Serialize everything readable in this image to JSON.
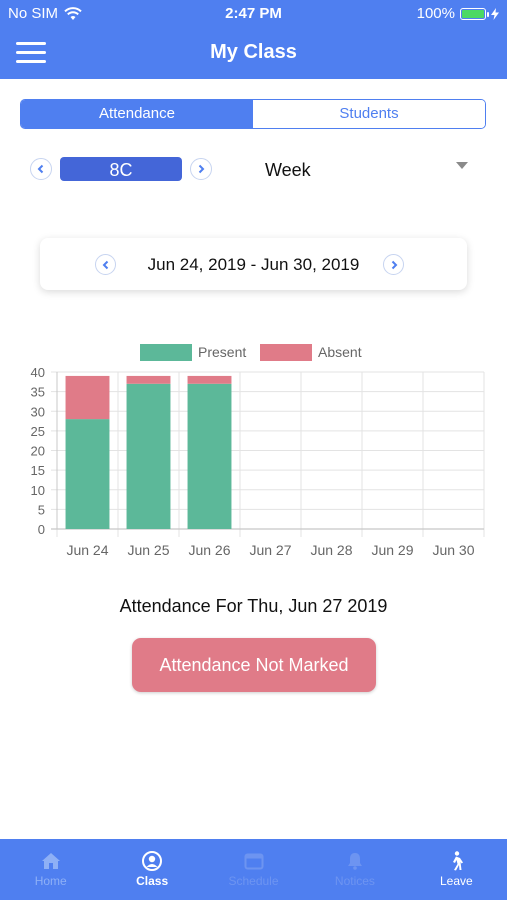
{
  "status_bar": {
    "carrier": "No SIM",
    "time": "2:47 PM",
    "battery": "100%"
  },
  "header": {
    "title": "My Class"
  },
  "segments": {
    "attendance": "Attendance",
    "students": "Students"
  },
  "selector": {
    "class_name": "8C",
    "period": "Week"
  },
  "date_range": {
    "label": "Jun 24, 2019 - Jun 30, 2019"
  },
  "chart_data": {
    "type": "bar",
    "stacked": true,
    "categories": [
      "Jun 24",
      "Jun 25",
      "Jun 26",
      "Jun 27",
      "Jun 28",
      "Jun 29",
      "Jun 30"
    ],
    "series": [
      {
        "name": "Present",
        "color": "#5cb899",
        "values": [
          28,
          37,
          37,
          0,
          0,
          0,
          0
        ]
      },
      {
        "name": "Absent",
        "color": "#e07b88",
        "values": [
          11,
          2,
          2,
          0,
          0,
          0,
          0
        ]
      }
    ],
    "ylim": [
      0,
      40
    ],
    "yticks": [
      0,
      5,
      10,
      15,
      20,
      25,
      30,
      35,
      40
    ],
    "grid": true,
    "legend": "top-center"
  },
  "attendance_info": {
    "heading": "Attendance For Thu, Jun 27 2019",
    "status": "Attendance Not Marked"
  },
  "tabbar": {
    "items": [
      {
        "label": "Home",
        "icon": "home-icon"
      },
      {
        "label": "Class",
        "icon": "class-icon"
      },
      {
        "label": "Schedule",
        "icon": "calendar-icon"
      },
      {
        "label": "Notices",
        "icon": "bell-icon"
      },
      {
        "label": "Leave",
        "icon": "walking-icon"
      }
    ],
    "active": "Class"
  }
}
